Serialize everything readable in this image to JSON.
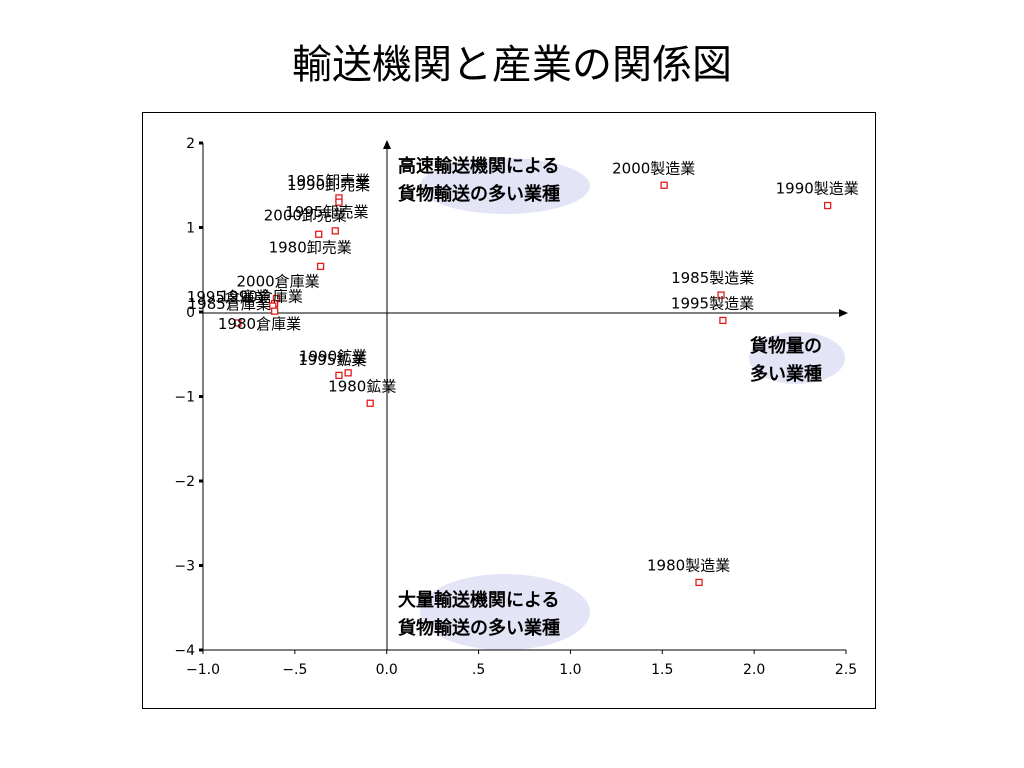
{
  "slide": {
    "title": "輸送機関と産業の関係図"
  },
  "chart_data": {
    "type": "scatter",
    "title": "輸送機関と産業の関係図",
    "xlim": [
      -1.0,
      2.5
    ],
    "ylim": [
      -4,
      2
    ],
    "x_ticks": [
      {
        "value": -1.0,
        "label": "−1.0"
      },
      {
        "value": -0.5,
        "label": "−.5"
      },
      {
        "value": 0.0,
        "label": "0.0"
      },
      {
        "value": 0.5,
        "label": ".5"
      },
      {
        "value": 1.0,
        "label": "1.0"
      },
      {
        "value": 1.5,
        "label": "1.5"
      },
      {
        "value": 2.0,
        "label": "2.0"
      },
      {
        "value": 2.5,
        "label": "2.5"
      }
    ],
    "y_ticks": [
      {
        "value": 2,
        "label": "2"
      },
      {
        "value": 1,
        "label": "1"
      },
      {
        "value": 0,
        "label": "0"
      },
      {
        "value": -1,
        "label": "−1"
      },
      {
        "value": -2,
        "label": "−2"
      },
      {
        "value": -3,
        "label": "−3"
      },
      {
        "value": -4,
        "label": "−4"
      }
    ],
    "grid": false,
    "marker_color": "#e31b1b",
    "points": [
      {
        "label": "1985卸売業",
        "x": -0.26,
        "y": 1.35,
        "anchor": "start",
        "dx": -52,
        "dy": -12
      },
      {
        "label": "1990卸売業",
        "x": -0.26,
        "y": 1.3,
        "anchor": "start",
        "dx": -52,
        "dy": -12
      },
      {
        "label": "1995卸売業",
        "x": -0.28,
        "y": 0.96,
        "anchor": "start",
        "dx": -50,
        "dy": -14
      },
      {
        "label": "2000卸売業",
        "x": -0.37,
        "y": 0.92,
        "anchor": "start",
        "dx": -55,
        "dy": -14
      },
      {
        "label": "1980卸売業",
        "x": -0.36,
        "y": 0.54,
        "anchor": "start",
        "dx": -52,
        "dy": -14
      },
      {
        "label": "2000倉庫業",
        "x": -0.6,
        "y": 0.16,
        "anchor": "start",
        "dx": -40,
        "dy": -12
      },
      {
        "label": "1990倉庫業",
        "x": -0.61,
        "y": 0.1,
        "anchor": "start",
        "dx": -55,
        "dy": -2
      },
      {
        "label": "1995倉庫業",
        "x": -0.62,
        "y": 0.07,
        "anchor": "start",
        "dx": -86,
        "dy": -4
      },
      {
        "label": "1985倉庫業",
        "x": -0.61,
        "y": 0.01,
        "anchor": "start",
        "dx": -87,
        "dy": -2
      },
      {
        "label": "1980倉庫業",
        "x": -0.81,
        "y": -0.13,
        "anchor": "start",
        "dx": -20,
        "dy": 6
      },
      {
        "label": "1980鉱業",
        "x": -0.09,
        "y": -1.08,
        "anchor": "start",
        "dx": -42,
        "dy": -12
      },
      {
        "label": "1990鉱業",
        "x": -0.26,
        "y": -0.75,
        "anchor": "start",
        "dx": -40,
        "dy": -14
      },
      {
        "label": "1995鉱業",
        "x": -0.21,
        "y": -0.72,
        "anchor": "start",
        "dx": -50,
        "dy": -8
      },
      {
        "label": "2000製造業",
        "x": 1.51,
        "y": 1.5,
        "anchor": "start",
        "dx": -52,
        "dy": -12
      },
      {
        "label": "1990製造業",
        "x": 2.4,
        "y": 1.26,
        "anchor": "start",
        "dx": -52,
        "dy": -12
      },
      {
        "label": "1985製造業",
        "x": 1.82,
        "y": 0.2,
        "anchor": "start",
        "dx": -50,
        "dy": -12
      },
      {
        "label": "1995製造業",
        "x": 1.83,
        "y": -0.1,
        "anchor": "start",
        "dx": -52,
        "dy": -12
      },
      {
        "label": "1980製造業",
        "x": 1.7,
        "y": -3.2,
        "anchor": "start",
        "dx": -52,
        "dy": -12
      }
    ],
    "annotations": [
      {
        "lines": [
          "高速輸送機関による",
          "貨物輸送の多い業種"
        ]
      },
      {
        "lines": [
          "貨物量の",
          "多い業種"
        ]
      },
      {
        "lines": [
          "大量輸送機関による",
          "貨物輸送の多い業種"
        ]
      }
    ],
    "annotation_highlight": "#e4e4f7"
  }
}
